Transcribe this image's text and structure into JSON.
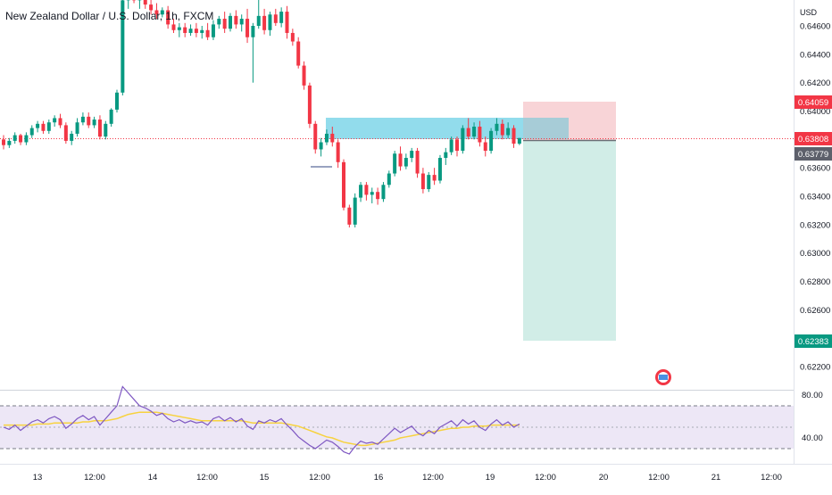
{
  "header": {
    "title": "New Zealand Dollar / U.S. Dollar, 1h, FXCM"
  },
  "price_axis": {
    "currency": "USD",
    "ticks": [
      "0.64600",
      "0.64400",
      "0.64200",
      "0.64000",
      "0.63800",
      "0.63600",
      "0.63400",
      "0.63200",
      "0.63000",
      "0.62800",
      "0.62600",
      "0.62400",
      "0.62200"
    ]
  },
  "price_labels": {
    "stop": {
      "text": "0.64059",
      "value": 0.64059,
      "color": "#f23645"
    },
    "last": {
      "text": "0.63808",
      "value": 0.63808,
      "color": "#f23645"
    },
    "entry": {
      "text": "0.63779",
      "value": 0.63779,
      "color": "#5d606b"
    },
    "target": {
      "text": "0.62383",
      "value": 0.62383,
      "color": "#089981"
    }
  },
  "rsi_axis": {
    "ticks": [
      "80.00",
      "40.00"
    ]
  },
  "time_axis": {
    "ticks": [
      "13",
      "12:00",
      "14",
      "12:00",
      "15",
      "12:00",
      "16",
      "12:00",
      "19",
      "12:00",
      "20",
      "12:00",
      "21",
      "12:00"
    ]
  },
  "colors": {
    "up": "#089981",
    "down": "#f23645",
    "zone": "#7fd8e8",
    "risk": "#f7c9cd",
    "reward": "#cfeae4",
    "rsi_line": "#7e57c2",
    "rsi_ma": "#f7d23e",
    "rsi_band": "#ede7f6"
  },
  "chart_data": {
    "type": "candlestick",
    "symbol": "New Zealand Dollar / U.S. Dollar",
    "interval": "1h",
    "source": "FXCM",
    "y_range": [
      0.6212,
      0.6487
    ],
    "last_price": 0.63808,
    "ohlc": [
      [
        0.638,
        0.6383,
        0.6373,
        0.6376
      ],
      [
        0.6376,
        0.6381,
        0.6374,
        0.6379
      ],
      [
        0.6379,
        0.6385,
        0.6377,
        0.6383
      ],
      [
        0.6383,
        0.6384,
        0.6376,
        0.6378
      ],
      [
        0.6378,
        0.6385,
        0.6376,
        0.6383
      ],
      [
        0.6383,
        0.639,
        0.6381,
        0.6388
      ],
      [
        0.6388,
        0.6393,
        0.6385,
        0.6391
      ],
      [
        0.6391,
        0.6393,
        0.6384,
        0.6386
      ],
      [
        0.6386,
        0.6394,
        0.6384,
        0.6392
      ],
      [
        0.6392,
        0.6397,
        0.6389,
        0.6395
      ],
      [
        0.6395,
        0.6398,
        0.6388,
        0.639
      ],
      [
        0.639,
        0.6392,
        0.6377,
        0.6379
      ],
      [
        0.6379,
        0.6386,
        0.6376,
        0.6384
      ],
      [
        0.6384,
        0.6395,
        0.6382,
        0.6392
      ],
      [
        0.6392,
        0.6399,
        0.639,
        0.6396
      ],
      [
        0.6396,
        0.6399,
        0.6388,
        0.639
      ],
      [
        0.639,
        0.6396,
        0.6388,
        0.6394
      ],
      [
        0.6394,
        0.6397,
        0.638,
        0.6382
      ],
      [
        0.6382,
        0.6393,
        0.638,
        0.6391
      ],
      [
        0.6391,
        0.6402,
        0.6389,
        0.6401
      ],
      [
        0.6401,
        0.6415,
        0.6399,
        0.6413
      ],
      [
        0.6413,
        0.6488,
        0.6411,
        0.6478
      ],
      [
        0.6478,
        0.6487,
        0.6472,
        0.6483
      ],
      [
        0.6483,
        0.6487,
        0.6476,
        0.6478
      ],
      [
        0.6478,
        0.6483,
        0.6472,
        0.6481
      ],
      [
        0.6481,
        0.6484,
        0.6472,
        0.6475
      ],
      [
        0.6475,
        0.6479,
        0.6468,
        0.6471
      ],
      [
        0.6471,
        0.6476,
        0.6465,
        0.6468
      ],
      [
        0.6468,
        0.6473,
        0.6466,
        0.6471
      ],
      [
        0.6471,
        0.6474,
        0.6458,
        0.6461
      ],
      [
        0.6461,
        0.6465,
        0.6455,
        0.6457
      ],
      [
        0.6457,
        0.6462,
        0.6452,
        0.6459
      ],
      [
        0.6459,
        0.6462,
        0.6452,
        0.6455
      ],
      [
        0.6455,
        0.6461,
        0.6453,
        0.6458
      ],
      [
        0.6458,
        0.6462,
        0.6452,
        0.6455
      ],
      [
        0.6455,
        0.646,
        0.6451,
        0.6457
      ],
      [
        0.6457,
        0.6462,
        0.645,
        0.6452
      ],
      [
        0.6452,
        0.6464,
        0.645,
        0.6461
      ],
      [
        0.6461,
        0.6467,
        0.6458,
        0.6465
      ],
      [
        0.6465,
        0.647,
        0.6455,
        0.6458
      ],
      [
        0.6458,
        0.6469,
        0.6456,
        0.6467
      ],
      [
        0.6467,
        0.6471,
        0.6458,
        0.6461
      ],
      [
        0.6461,
        0.6468,
        0.6456,
        0.6465
      ],
      [
        0.6465,
        0.6472,
        0.6448,
        0.6452
      ],
      [
        0.6452,
        0.6462,
        0.642,
        0.646
      ],
      [
        0.646,
        0.6487,
        0.6458,
        0.6467
      ],
      [
        0.6467,
        0.6472,
        0.6454,
        0.6457
      ],
      [
        0.6457,
        0.647,
        0.6453,
        0.6468
      ],
      [
        0.6468,
        0.6472,
        0.646,
        0.6462
      ],
      [
        0.6462,
        0.6473,
        0.6459,
        0.647
      ],
      [
        0.647,
        0.6474,
        0.6451,
        0.6455
      ],
      [
        0.6455,
        0.6458,
        0.6446,
        0.6449
      ],
      [
        0.6449,
        0.6452,
        0.643,
        0.6432
      ],
      [
        0.6432,
        0.6435,
        0.6415,
        0.6418
      ],
      [
        0.6418,
        0.642,
        0.6388,
        0.6391
      ],
      [
        0.6391,
        0.6393,
        0.637,
        0.6373
      ],
      [
        0.6373,
        0.6381,
        0.6368,
        0.6378
      ],
      [
        0.6378,
        0.6387,
        0.6376,
        0.6384
      ],
      [
        0.6384,
        0.6389,
        0.6375,
        0.6378
      ],
      [
        0.6378,
        0.638,
        0.636,
        0.6364
      ],
      [
        0.6364,
        0.6366,
        0.633,
        0.6332
      ],
      [
        0.6332,
        0.6334,
        0.6318,
        0.632
      ],
      [
        0.632,
        0.6342,
        0.6318,
        0.6339
      ],
      [
        0.6339,
        0.635,
        0.6336,
        0.6348
      ],
      [
        0.6348,
        0.635,
        0.6337,
        0.6341
      ],
      [
        0.6341,
        0.6346,
        0.6335,
        0.6343
      ],
      [
        0.6343,
        0.6346,
        0.6334,
        0.6338
      ],
      [
        0.6338,
        0.635,
        0.6336,
        0.6348
      ],
      [
        0.6348,
        0.6358,
        0.6346,
        0.6356
      ],
      [
        0.6356,
        0.6372,
        0.6354,
        0.637
      ],
      [
        0.637,
        0.6375,
        0.6358,
        0.6361
      ],
      [
        0.6361,
        0.637,
        0.6359,
        0.6367
      ],
      [
        0.6367,
        0.6374,
        0.6364,
        0.6372
      ],
      [
        0.6372,
        0.6374,
        0.6353,
        0.6356
      ],
      [
        0.6356,
        0.636,
        0.6342,
        0.6345
      ],
      [
        0.6345,
        0.6357,
        0.6343,
        0.6355
      ],
      [
        0.6355,
        0.636,
        0.6348,
        0.6351
      ],
      [
        0.6351,
        0.6369,
        0.6349,
        0.6367
      ],
      [
        0.6367,
        0.6374,
        0.6362,
        0.6371
      ],
      [
        0.6371,
        0.6382,
        0.6369,
        0.638
      ],
      [
        0.638,
        0.6382,
        0.6368,
        0.6372
      ],
      [
        0.6372,
        0.639,
        0.637,
        0.6388
      ],
      [
        0.6388,
        0.6395,
        0.638,
        0.6382
      ],
      [
        0.6382,
        0.6392,
        0.638,
        0.6389
      ],
      [
        0.6389,
        0.6393,
        0.6375,
        0.6378
      ],
      [
        0.6378,
        0.6382,
        0.6368,
        0.6372
      ],
      [
        0.6372,
        0.6388,
        0.637,
        0.6386
      ],
      [
        0.6386,
        0.6395,
        0.6383,
        0.6391
      ],
      [
        0.6391,
        0.6394,
        0.638,
        0.6383
      ],
      [
        0.6383,
        0.6392,
        0.6381,
        0.6388
      ],
      [
        0.6388,
        0.639,
        0.6374,
        0.6377
      ],
      [
        0.6377,
        0.6381,
        0.6376,
        0.6381
      ]
    ],
    "supply_zone": {
      "top": 0.6394,
      "bottom": 0.638
    },
    "position": {
      "type": "short",
      "entry": 0.63779,
      "stop": 0.64059,
      "target": 0.62383
    },
    "rsi": {
      "levels": [
        70,
        30
      ],
      "display_ticks": [
        80,
        40
      ],
      "values": [
        50,
        48,
        52,
        47,
        51,
        55,
        57,
        54,
        58,
        60,
        57,
        49,
        53,
        58,
        61,
        57,
        60,
        52,
        58,
        64,
        70,
        88,
        82,
        76,
        70,
        68,
        65,
        61,
        63,
        58,
        55,
        57,
        54,
        56,
        54,
        55,
        52,
        58,
        60,
        56,
        59,
        55,
        58,
        51,
        48,
        56,
        54,
        57,
        55,
        58,
        52,
        47,
        41,
        37,
        33,
        30,
        34,
        38,
        36,
        32,
        27,
        25,
        32,
        37,
        35,
        36,
        34,
        39,
        44,
        49,
        45,
        48,
        51,
        45,
        42,
        47,
        44,
        50,
        53,
        56,
        51,
        57,
        53,
        56,
        50,
        47,
        53,
        57,
        52,
        55,
        50,
        53
      ],
      "ma": [
        52,
        52,
        52,
        52,
        52,
        52,
        53,
        53,
        53,
        54,
        54,
        54,
        54,
        54,
        55,
        55,
        56,
        56,
        56,
        57,
        58,
        60,
        62,
        63,
        64,
        64,
        64,
        64,
        63,
        62,
        61,
        60,
        59,
        58,
        57,
        56,
        56,
        56,
        56,
        56,
        56,
        56,
        56,
        55,
        54,
        54,
        54,
        54,
        54,
        54,
        53,
        52,
        51,
        49,
        47,
        45,
        43,
        41,
        40,
        38,
        36,
        35,
        34,
        33,
        33,
        34,
        35,
        36,
        37,
        38,
        40,
        41,
        42,
        43,
        44,
        45,
        46,
        47,
        48,
        49,
        49,
        50,
        50,
        51,
        51,
        51,
        52,
        52,
        52,
        52,
        52,
        52
      ]
    }
  }
}
